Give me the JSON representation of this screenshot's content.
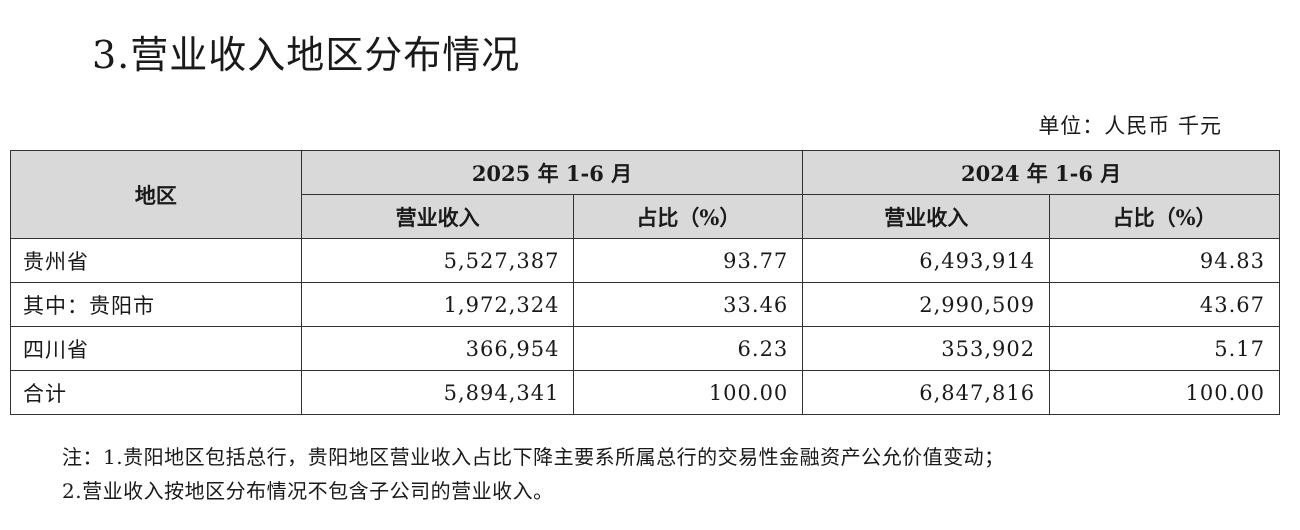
{
  "title": "3.营业收入地区分布情况",
  "unit": "单位：人民币 千元",
  "table": {
    "header_region": "地区",
    "period_2025": "2025 年 1-6 月",
    "period_2024": "2024 年 1-6 月",
    "col_revenue": "营业收入",
    "col_share": "占比（%）",
    "rows": [
      {
        "region": "贵州省",
        "rev_2025": "5,527,387",
        "share_2025": "93.77",
        "rev_2024": "6,493,914",
        "share_2024": "94.83"
      },
      {
        "region": "其中：贵阳市",
        "rev_2025": "1,972,324",
        "share_2025": "33.46",
        "rev_2024": "2,990,509",
        "share_2024": "43.67"
      },
      {
        "region": "四川省",
        "rev_2025": "366,954",
        "share_2025": "6.23",
        "rev_2024": "353,902",
        "share_2024": "5.17"
      },
      {
        "region": "合计",
        "rev_2025": "5,894,341",
        "share_2025": "100.00",
        "rev_2024": "6,847,816",
        "share_2024": "100.00"
      }
    ]
  },
  "notes": {
    "line1": "注：1.贵阳地区包括总行，贵阳地区营业收入占比下降主要系所属总行的交易性金融资产公允价值变动；",
    "line2": "2.营业收入按地区分布情况不包含子公司的营业收入。"
  }
}
